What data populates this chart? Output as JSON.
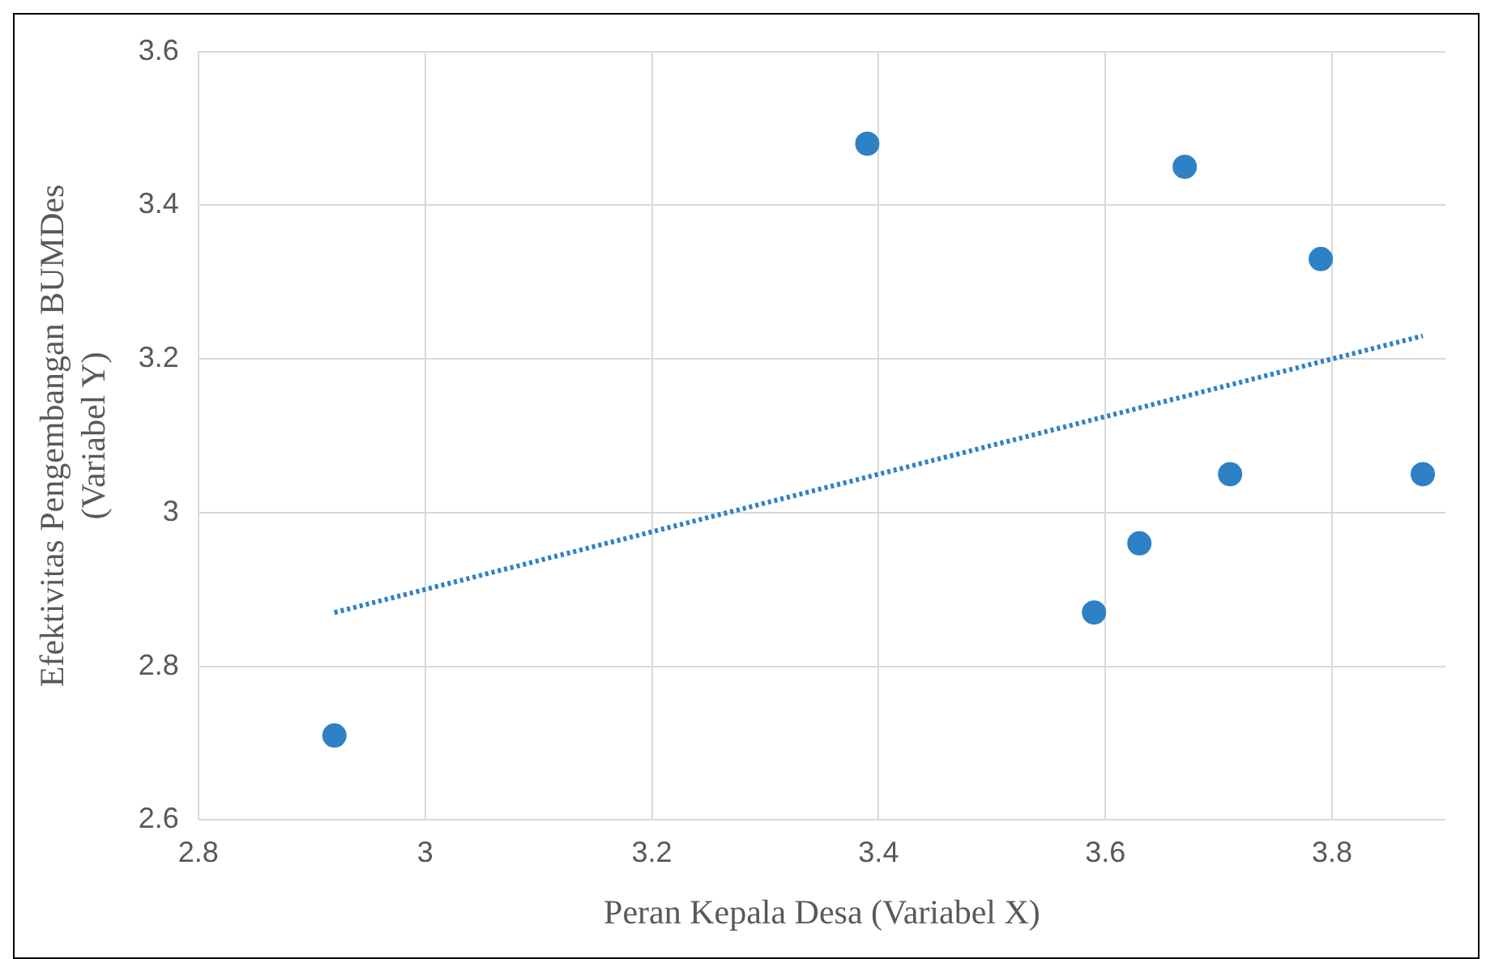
{
  "chart_data": {
    "type": "scatter",
    "xlabel": "Peran Kepala Desa (Variabel X)",
    "ylabel": "Efektivitas Pengembangan BUMDes (Variabel Y)",
    "xlim": [
      2.8,
      3.9
    ],
    "xticks": [
      2.8,
      3,
      3.2,
      3.4,
      3.6,
      3.8
    ],
    "ylim": [
      2.6,
      3.6
    ],
    "yticks": [
      2.6,
      2.8,
      3,
      3.2,
      3.4,
      3.6
    ],
    "grid": true,
    "legend": false,
    "series": [
      {
        "color": "#2e81c5",
        "marker": "circle",
        "x": [
          2.92,
          3.39,
          3.67,
          3.79,
          3.88,
          3.71,
          3.63,
          3.59
        ],
        "values": [
          2.71,
          3.48,
          3.45,
          3.33,
          3.05,
          3.05,
          2.96,
          2.87
        ]
      },
      {
        "type": "line",
        "color": "#2e81c5",
        "line_style": "dotted",
        "marker": "none",
        "x": [
          2.92,
          3.88
        ],
        "values": [
          2.87,
          3.23
        ]
      }
    ]
  }
}
